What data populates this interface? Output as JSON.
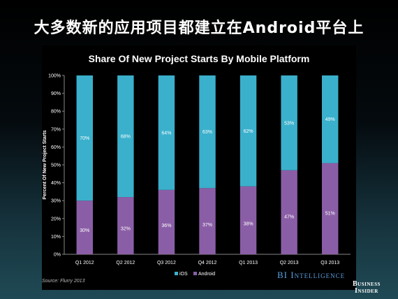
{
  "slide_title": "大多数新的应用项目都建立在Android平台上",
  "source": "Source: Flurry 2013",
  "logo": {
    "text": "BI Intelligence"
  },
  "brand": {
    "line1": "Business",
    "line2": "Insider"
  },
  "colors": {
    "ios": "#3ab0cc",
    "android": "#8a5ea6"
  },
  "chart_data": {
    "type": "bar",
    "stacked": true,
    "title": "Share Of New Project Starts By Mobile Platform",
    "ylabel": "Percent Of New Project Starts",
    "xlabel": "",
    "ylim": [
      0,
      100
    ],
    "yticks": [
      "0%",
      "10%",
      "20%",
      "30%",
      "40%",
      "50%",
      "60%",
      "70%",
      "80%",
      "90%",
      "100%"
    ],
    "categories": [
      "Q1 2012",
      "Q2 2012",
      "Q3 2012",
      "Q4 2012",
      "Q1 2013",
      "Q2 2013",
      "Q3 2013"
    ],
    "series": [
      {
        "name": "Android",
        "values": [
          30,
          32,
          36,
          37,
          38,
          47,
          51
        ]
      },
      {
        "name": "iOS",
        "values": [
          70,
          68,
          64,
          63,
          62,
          53,
          49
        ]
      }
    ],
    "legend": "bottom"
  }
}
